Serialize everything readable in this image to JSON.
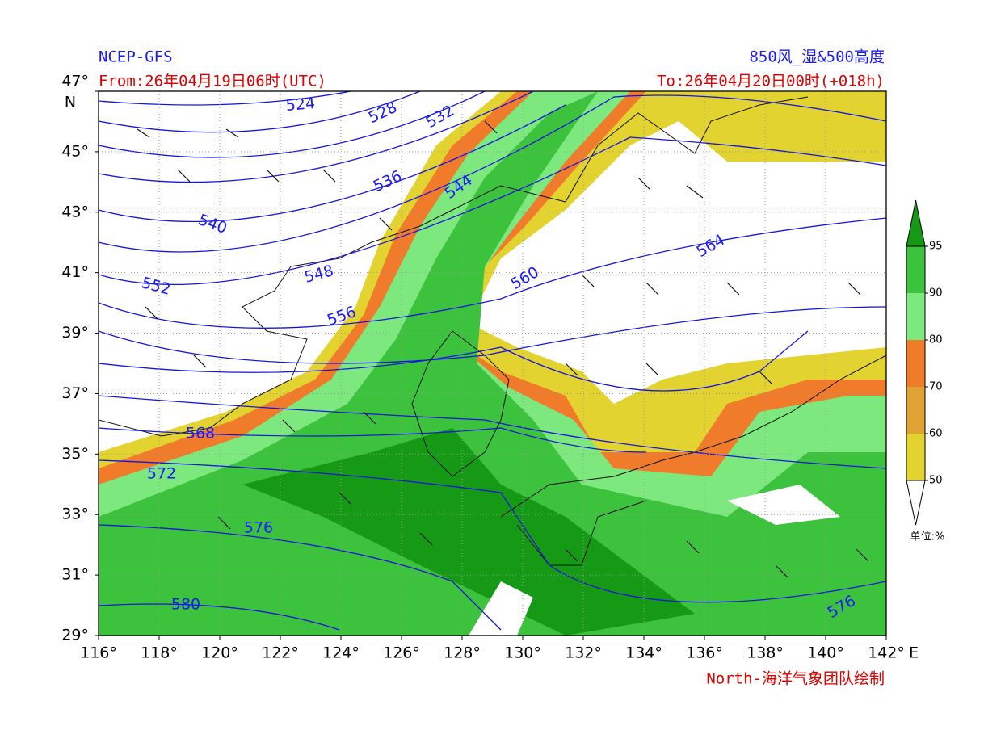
{
  "header": {
    "source": "NCEP-GFS",
    "product": "850风_湿&500高度",
    "from": "From:26年04月19日06时(UTC)",
    "to": "To:26年04月20日00时(+018h)"
  },
  "map": {
    "lon_lim": [
      116,
      142
    ],
    "lat_lim": [
      29,
      47
    ],
    "lon_ticks": [
      {
        "value": 116,
        "label": "116°"
      },
      {
        "value": 118,
        "label": "118°"
      },
      {
        "value": 120,
        "label": "120°"
      },
      {
        "value": 122,
        "label": "122°"
      },
      {
        "value": 124,
        "label": "124°"
      },
      {
        "value": 126,
        "label": "126°"
      },
      {
        "value": 128,
        "label": "128°"
      },
      {
        "value": 130,
        "label": "130°"
      },
      {
        "value": 132,
        "label": "132°"
      },
      {
        "value": 134,
        "label": "134°"
      },
      {
        "value": 136,
        "label": "136°"
      },
      {
        "value": 138,
        "label": "138°"
      },
      {
        "value": 140,
        "label": "140°"
      },
      {
        "value": 142,
        "label": "142°"
      }
    ],
    "lat_ticks": [
      {
        "value": 47,
        "label": "47°"
      },
      {
        "value": 45,
        "label": "45°"
      },
      {
        "value": 43,
        "label": "43°"
      },
      {
        "value": 41,
        "label": "41°"
      },
      {
        "value": 39,
        "label": "39°"
      },
      {
        "value": 37,
        "label": "37°"
      },
      {
        "value": 35,
        "label": "35°"
      },
      {
        "value": 33,
        "label": "33°"
      },
      {
        "value": 31,
        "label": "31°"
      },
      {
        "value": 29,
        "label": "29°"
      }
    ],
    "lon_unit": "E",
    "lat_unit": "N",
    "contour_labels": [
      524,
      528,
      532,
      536,
      540,
      544,
      548,
      552,
      556,
      560,
      564,
      568,
      572,
      576,
      580,
      576
    ]
  },
  "colorbar": {
    "levels": [
      50,
      60,
      70,
      80,
      90,
      95
    ],
    "colors": [
      "#e3d330",
      "#e0a232",
      "#f07b2a",
      "#7de87d",
      "#3cc23c",
      "#169a16"
    ],
    "unit": "单位:%"
  },
  "footer": "North-海洋气象团队绘制"
}
